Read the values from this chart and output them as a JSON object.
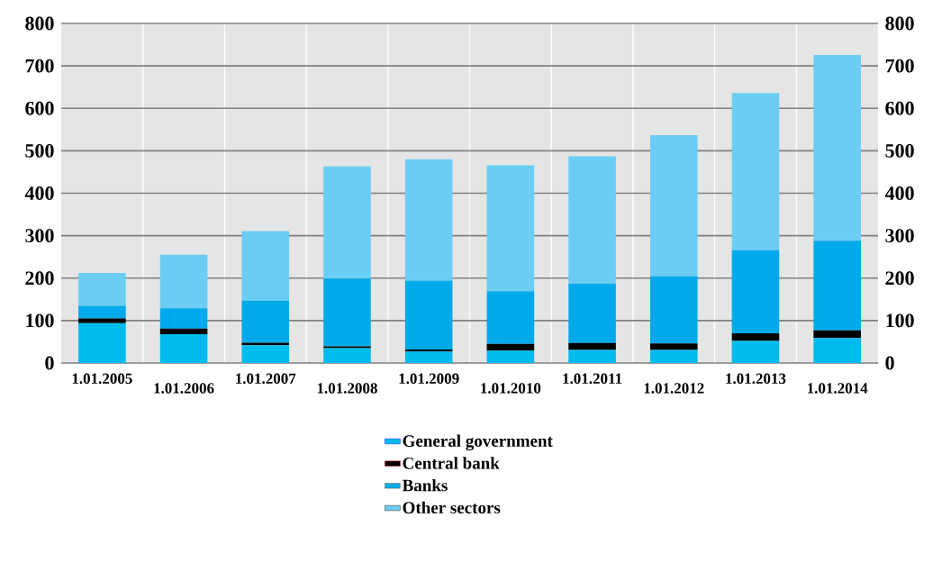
{
  "chart_data": {
    "type": "bar",
    "stacked": true,
    "categories": [
      "1.01.2005",
      "1.01.2006",
      "1.01.2007",
      "1.01.2008",
      "1.01.2009",
      "1.01.2010",
      "1.01.2011",
      "1.01.2012",
      "1.01.2013",
      "1.01.2014"
    ],
    "series": [
      {
        "name": "General government",
        "color": "#00bbee",
        "values": [
          94,
          68,
          42,
          35,
          27,
          29,
          31,
          31,
          52,
          59
        ]
      },
      {
        "name": "Central bank",
        "color": "#000000",
        "values": [
          11,
          13,
          6,
          4,
          5,
          16,
          16,
          15,
          18,
          18
        ]
      },
      {
        "name": "Banks",
        "color": "#00aaea",
        "values": [
          30,
          48,
          99,
          160,
          162,
          124,
          140,
          158,
          196,
          211
        ]
      },
      {
        "name": "Other sectors",
        "color": "#6bcdf3",
        "values": [
          77,
          126,
          164,
          264,
          286,
          297,
          300,
          333,
          370,
          438
        ]
      }
    ],
    "ylim": [
      0,
      800
    ],
    "yticks": [
      0,
      100,
      200,
      300,
      400,
      500,
      600,
      700,
      800
    ],
    "y2lim": [
      0,
      800
    ],
    "y2ticks": [
      0,
      100,
      200,
      300,
      400,
      500,
      600,
      700,
      800
    ],
    "grid": true,
    "legend": "bottom"
  }
}
